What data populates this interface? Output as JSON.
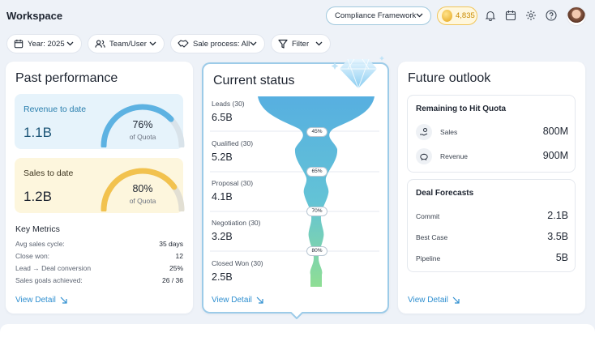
{
  "header": {
    "title": "Workspace",
    "framework_label": "Compliance Framework",
    "coins": "4,835"
  },
  "filters": [
    {
      "label": "Year: 2025"
    },
    {
      "label": "Team/User"
    },
    {
      "label": "Sale process: All"
    },
    {
      "label": "Filter"
    }
  ],
  "past": {
    "title": "Past performance",
    "revenue": {
      "label": "Revenue to date",
      "value": "1.1B",
      "pct": "76%",
      "pct_value": 0.76,
      "sub": "of Quota"
    },
    "sales": {
      "label": "Sales to date",
      "value": "1.2B",
      "pct": "80%",
      "pct_value": 0.8,
      "sub": "of Quota"
    },
    "key_metrics": {
      "title": "Key Metrics",
      "rows": [
        {
          "label": "Avg sales cycle:",
          "value": "35 days"
        },
        {
          "label": "Close won:",
          "value": "12"
        },
        {
          "label": "Lead → Deal conversion",
          "value": "25%"
        },
        {
          "label": "Sales goals achieved:",
          "value": "26 / 36"
        }
      ]
    },
    "view_detail": "View Detail"
  },
  "current": {
    "title": "Current status",
    "stages": [
      {
        "label": "Leads (30)",
        "value": "6.5B"
      },
      {
        "label": "Qualified (30)",
        "value": "5.2B"
      },
      {
        "label": "Proposal (30)",
        "value": "4.1B"
      },
      {
        "label": "Negotiation (30)",
        "value": "3.2B"
      },
      {
        "label": "Closed Won (30)",
        "value": "2.5B"
      }
    ],
    "conversions": [
      "45%",
      "65%",
      "70%",
      "80%"
    ],
    "view_detail": "View Detail"
  },
  "future": {
    "title": "Future outlook",
    "quota": {
      "title": "Remaining to Hit Quota",
      "rows": [
        {
          "label": "Sales",
          "value": "800M"
        },
        {
          "label": "Revenue",
          "value": "900M"
        }
      ]
    },
    "forecasts": {
      "title": "Deal Forecasts",
      "rows": [
        {
          "label": "Commit",
          "value": "2.1B"
        },
        {
          "label": "Best Case",
          "value": "3.5B"
        },
        {
          "label": "Pipeline",
          "value": "5B"
        }
      ]
    },
    "view_detail": "View Detail"
  },
  "colors": {
    "accent_blue": "#2f8fd0",
    "gauge_blue": "#5db2e2",
    "gauge_yellow": "#f2c24e",
    "funnel_top": "#57afe0",
    "funnel_bottom": "#8fde94"
  }
}
